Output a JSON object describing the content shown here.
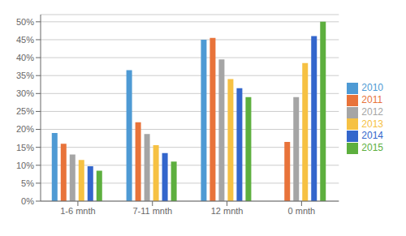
{
  "chart_data": {
    "type": "bar",
    "categories": [
      "1-6 mnth",
      "7-11 mnth",
      "12 mnth",
      "0 mnth"
    ],
    "series": [
      {
        "name": "2010",
        "color": "#4E9AD4",
        "values": [
          0.19,
          0.365,
          0.45,
          0.0
        ]
      },
      {
        "name": "2011",
        "color": "#E8733A",
        "values": [
          0.16,
          0.22,
          0.455,
          0.165
        ]
      },
      {
        "name": "2012",
        "color": "#A5A5A5",
        "values": [
          0.13,
          0.187,
          0.395,
          0.29
        ]
      },
      {
        "name": "2013",
        "color": "#F6C143",
        "values": [
          0.115,
          0.156,
          0.34,
          0.385
        ]
      },
      {
        "name": "2014",
        "color": "#3366CC",
        "values": [
          0.097,
          0.134,
          0.315,
          0.46
        ]
      },
      {
        "name": "2015",
        "color": "#5DAF3E",
        "values": [
          0.085,
          0.11,
          0.29,
          0.5
        ]
      }
    ],
    "ylim": [
      0,
      0.52
    ],
    "yticks": [
      {
        "value": 0.0,
        "label": "0%"
      },
      {
        "value": 0.05,
        "label": "5%"
      },
      {
        "value": 0.1,
        "label": "10%"
      },
      {
        "value": 0.15,
        "label": "15%"
      },
      {
        "value": 0.2,
        "label": "20%"
      },
      {
        "value": 0.25,
        "label": "25%"
      },
      {
        "value": 0.3,
        "label": "30%"
      },
      {
        "value": 0.35,
        "label": "35%"
      },
      {
        "value": 0.4,
        "label": "40%"
      },
      {
        "value": 0.45,
        "label": "45%"
      },
      {
        "value": 0.5,
        "label": "50%"
      }
    ],
    "grid": true,
    "legend": "right"
  }
}
